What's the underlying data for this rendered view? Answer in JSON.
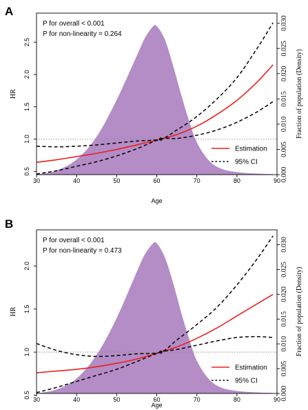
{
  "chart_data": [
    {
      "panel": "A",
      "type": "line",
      "xlabel": "Age",
      "ylabel": "HR",
      "y2label": "Fraction of population (Density)",
      "xlim": [
        30,
        90
      ],
      "ylim": [
        0.45,
        2.95
      ],
      "y2lim": [
        0,
        0.032
      ],
      "x_ticks": [
        30,
        40,
        50,
        60,
        70,
        80,
        90
      ],
      "y_ticks": [
        0.5,
        1.0,
        1.5,
        2.0,
        2.5
      ],
      "y_tick_labels": [
        "0.5",
        "1.0",
        "1.5",
        "2.0",
        "2.5"
      ],
      "y2_ticks": [
        0,
        0.005,
        0.01,
        0.015,
        0.02,
        0.025,
        0.03
      ],
      "y2_tick_labels": [
        "0.000",
        "0.005",
        "0.010",
        "0.015",
        "0.020",
        "0.025",
        "0.030"
      ],
      "annotations": [
        "P for overall < 0.001",
        "P for non-linearity = 0.264"
      ],
      "reference_line": 1.0,
      "reference_point": [
        61,
        1.0
      ],
      "legend": [
        "Estimation",
        "95% CI"
      ],
      "legend_position": "bottom-right",
      "density": {
        "x": [
          30,
          35,
          40,
          45,
          50,
          55,
          57,
          59,
          60,
          62,
          64,
          66,
          68,
          70,
          73,
          76,
          80,
          85,
          89
        ],
        "y": [
          0,
          0.0008,
          0.003,
          0.0075,
          0.0148,
          0.0235,
          0.027,
          0.0293,
          0.0294,
          0.0268,
          0.0218,
          0.0161,
          0.0108,
          0.0064,
          0.0028,
          0.0012,
          0.0005,
          0.0002,
          0.0001
        ]
      },
      "series": [
        {
          "name": "Estimation",
          "x": [
            30,
            35,
            40,
            45,
            50,
            55,
            61,
            65,
            70,
            75,
            80,
            85,
            89
          ],
          "y": [
            0.64,
            0.68,
            0.73,
            0.78,
            0.84,
            0.91,
            1.0,
            1.07,
            1.2,
            1.38,
            1.6,
            1.88,
            2.15
          ]
        },
        {
          "name": "95% CI (upper)",
          "x": [
            30,
            35,
            40,
            45,
            50,
            55,
            61,
            65,
            70,
            75,
            80,
            85,
            89
          ],
          "y": [
            0.89,
            0.88,
            0.89,
            0.91,
            0.94,
            0.97,
            1.0,
            1.14,
            1.35,
            1.62,
            1.95,
            2.4,
            2.8
          ]
        },
        {
          "name": "95% CI (lower)",
          "x": [
            30,
            35,
            40,
            45,
            50,
            55,
            61,
            65,
            70,
            75,
            80,
            85,
            89
          ],
          "y": [
            0.46,
            0.51,
            0.58,
            0.65,
            0.74,
            0.85,
            1.0,
            1.01,
            1.06,
            1.14,
            1.26,
            1.42,
            1.58
          ]
        }
      ]
    },
    {
      "panel": "B",
      "type": "line",
      "xlabel": "Age",
      "ylabel": "HR",
      "y2label": "Fraction of population (Density)",
      "xlim": [
        30,
        90
      ],
      "ylim": [
        0.52,
        2.42
      ],
      "y2lim": [
        0,
        0.033
      ],
      "x_ticks": [
        30,
        40,
        50,
        60,
        70,
        80,
        90
      ],
      "y_ticks": [
        0.5,
        1.0,
        1.5,
        2.0
      ],
      "y_tick_labels": [
        "0.5",
        "1.0",
        "1.5",
        "2.0"
      ],
      "y2_ticks": [
        0,
        0.005,
        0.01,
        0.015,
        0.02,
        0.025,
        0.03
      ],
      "y2_tick_labels": [
        "0.000",
        "0.005",
        "0.010",
        "0.015",
        "0.020",
        "0.025",
        "0.030"
      ],
      "annotations": [
        "P for overall < 0.001",
        "P for non-linearity = 0.473"
      ],
      "reference_line": 1.0,
      "reference_point": [
        61,
        1.0
      ],
      "legend": [
        "Estimation",
        "95% CI"
      ],
      "legend_position": "bottom-right",
      "density": {
        "x": [
          30,
          35,
          40,
          45,
          50,
          55,
          57,
          59,
          60,
          62,
          64,
          66,
          68,
          70,
          73,
          76,
          80,
          85,
          89
        ],
        "y": [
          0,
          0.0008,
          0.003,
          0.0078,
          0.0152,
          0.0245,
          0.028,
          0.0302,
          0.0303,
          0.0275,
          0.0225,
          0.0166,
          0.0112,
          0.0066,
          0.0029,
          0.0012,
          0.0005,
          0.0002,
          0.0001
        ]
      },
      "series": [
        {
          "name": "Estimation",
          "x": [
            30,
            35,
            40,
            45,
            50,
            55,
            61,
            65,
            70,
            75,
            80,
            85,
            89
          ],
          "y": [
            0.76,
            0.78,
            0.8,
            0.83,
            0.87,
            0.92,
            1.0,
            1.06,
            1.16,
            1.28,
            1.42,
            1.56,
            1.67
          ]
        },
        {
          "name": "95% CI (upper)",
          "x": [
            30,
            35,
            40,
            45,
            50,
            55,
            61,
            65,
            70,
            75,
            80,
            85,
            89
          ],
          "y": [
            1.1,
            1.02,
            0.97,
            0.95,
            0.96,
            0.98,
            1.0,
            1.14,
            1.32,
            1.52,
            1.78,
            2.08,
            2.35
          ]
        },
        {
          "name": "95% CI (lower)",
          "x": [
            30,
            35,
            40,
            45,
            50,
            55,
            61,
            65,
            70,
            75,
            80,
            85,
            89
          ],
          "y": [
            0.53,
            0.59,
            0.66,
            0.73,
            0.8,
            0.89,
            1.0,
            1.03,
            1.08,
            1.13,
            1.17,
            1.18,
            1.17
          ]
        }
      ]
    }
  ]
}
